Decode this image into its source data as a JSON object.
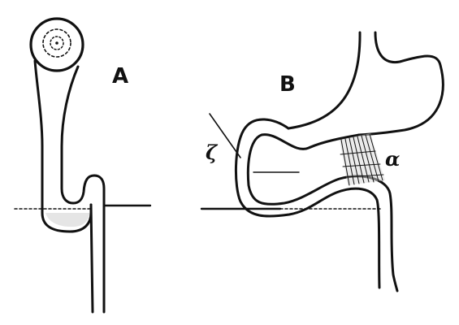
{
  "figure": {
    "panels": [
      {
        "label": "A"
      },
      {
        "label": "B"
      }
    ],
    "annotations": {
      "zeta": "ζ",
      "alpha": "α"
    },
    "ink_color": "#111111",
    "paper_color": "#ffffff"
  }
}
